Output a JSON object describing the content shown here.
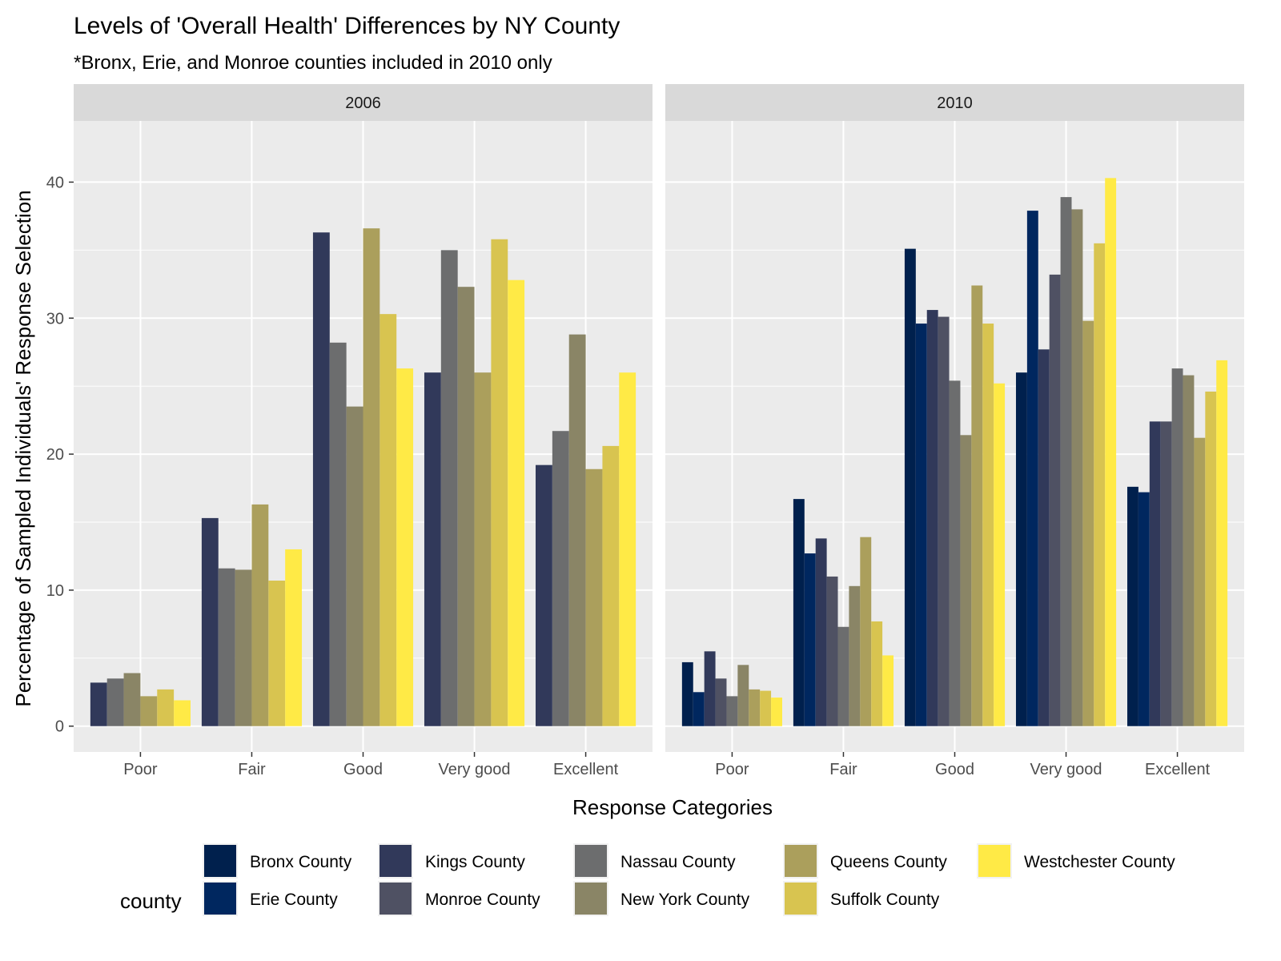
{
  "chart_data": {
    "type": "bar",
    "title": "Levels of 'Overall Health' Differences by NY County",
    "subtitle": "*Bronx, Erie, and Monroe counties included in 2010 only",
    "xlabel": "Response Categories",
    "ylabel": "Percentage of Sampled Individuals' Response Selection",
    "ylim": [
      -1.9,
      44.5
    ],
    "yticks": [
      0,
      10,
      20,
      30,
      40
    ],
    "categories": [
      "Poor",
      "Fair",
      "Good",
      "Very good",
      "Excellent"
    ],
    "legend": {
      "title": "county",
      "position": "bottom"
    },
    "counties": [
      {
        "name": "Bronx County",
        "color": "#00204D"
      },
      {
        "name": "Erie County",
        "color": "#00275F"
      },
      {
        "name": "Kings County",
        "color": "#31395A"
      },
      {
        "name": "Monroe County",
        "color": "#4F5163"
      },
      {
        "name": "Nassau County",
        "color": "#6C6D6E"
      },
      {
        "name": "New York County",
        "color": "#8A8566"
      },
      {
        "name": "Queens County",
        "color": "#AB9F5C"
      },
      {
        "name": "Suffolk County",
        "color": "#D8C450"
      },
      {
        "name": "Westchester County",
        "color": "#FFEA46"
      }
    ],
    "panels": [
      {
        "label": "2006",
        "series": [
          {
            "name": "Kings County",
            "values": [
              3.2,
              15.3,
              36.3,
              26.0,
              19.2
            ]
          },
          {
            "name": "Nassau County",
            "values": [
              3.5,
              11.6,
              28.2,
              35.0,
              21.7
            ]
          },
          {
            "name": "New York County",
            "values": [
              3.9,
              11.5,
              23.5,
              32.3,
              28.8
            ]
          },
          {
            "name": "Queens County",
            "values": [
              2.2,
              16.3,
              36.6,
              26.0,
              18.9
            ]
          },
          {
            "name": "Suffolk County",
            "values": [
              2.7,
              10.7,
              30.3,
              35.8,
              20.6
            ]
          },
          {
            "name": "Westchester County",
            "values": [
              1.9,
              13.0,
              26.3,
              32.8,
              26.0
            ]
          }
        ]
      },
      {
        "label": "2010",
        "series": [
          {
            "name": "Bronx County",
            "values": [
              4.7,
              16.7,
              35.1,
              26.0,
              17.6
            ]
          },
          {
            "name": "Erie County",
            "values": [
              2.5,
              12.7,
              29.6,
              37.9,
              17.2
            ]
          },
          {
            "name": "Kings County",
            "values": [
              5.5,
              13.8,
              30.6,
              27.7,
              22.4
            ]
          },
          {
            "name": "Monroe County",
            "values": [
              3.5,
              11.0,
              30.1,
              33.2,
              22.4
            ]
          },
          {
            "name": "Nassau County",
            "values": [
              2.2,
              7.3,
              25.4,
              38.9,
              26.3
            ]
          },
          {
            "name": "New York County",
            "values": [
              4.5,
              10.3,
              21.4,
              38.0,
              25.8
            ]
          },
          {
            "name": "Queens County",
            "values": [
              2.7,
              13.9,
              32.4,
              29.8,
              21.2
            ]
          },
          {
            "name": "Suffolk County",
            "values": [
              2.6,
              7.7,
              29.6,
              35.5,
              24.6
            ]
          },
          {
            "name": "Westchester County",
            "values": [
              2.1,
              5.2,
              25.2,
              40.3,
              26.9
            ]
          }
        ]
      }
    ]
  }
}
